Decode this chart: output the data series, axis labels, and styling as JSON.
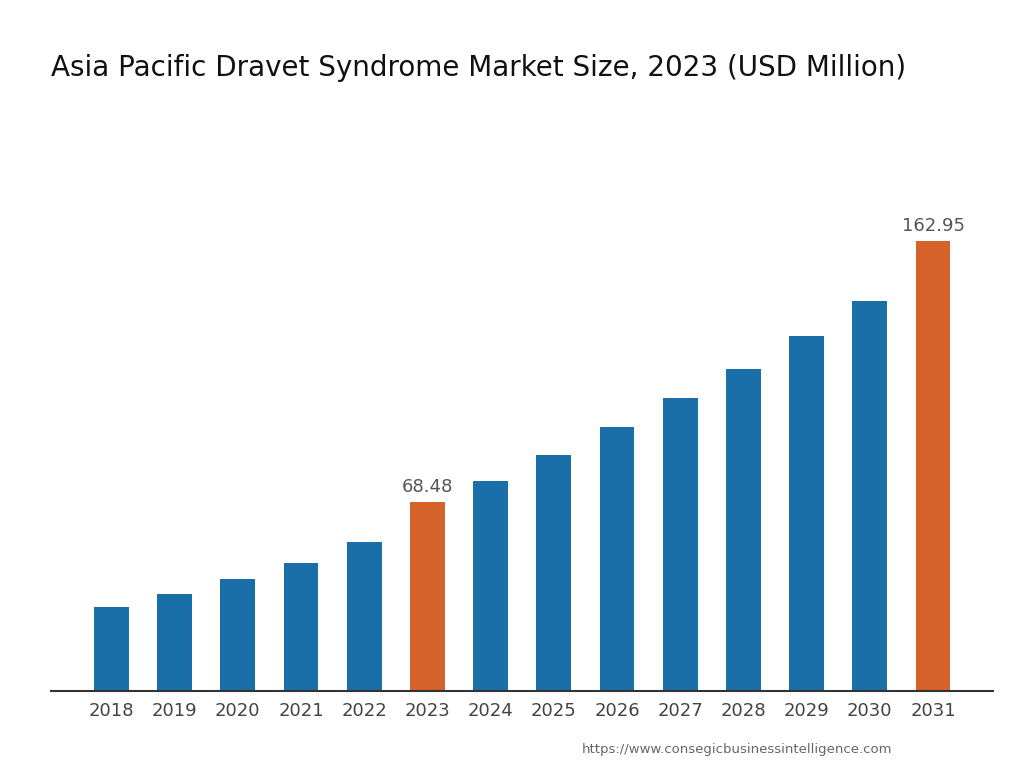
{
  "title": "Asia Pacific Dravet Syndrome Market Size, 2023 (USD Million)",
  "categories": [
    "2018",
    "2019",
    "2020",
    "2021",
    "2022",
    "2023",
    "2024",
    "2025",
    "2026",
    "2027",
    "2028",
    "2029",
    "2030",
    "2031"
  ],
  "values": [
    30.5,
    35.0,
    40.5,
    46.5,
    54.0,
    68.48,
    76.0,
    85.5,
    95.5,
    106.0,
    116.5,
    128.5,
    141.0,
    162.95
  ],
  "bar_colors": [
    "#1a6fa8",
    "#1a6fa8",
    "#1a6fa8",
    "#1a6fa8",
    "#1a6fa8",
    "#d4622a",
    "#1a6fa8",
    "#1a6fa8",
    "#1a6fa8",
    "#1a6fa8",
    "#1a6fa8",
    "#1a6fa8",
    "#1a6fa8",
    "#d4622a"
  ],
  "label_2023": "68.48",
  "label_2031": "162.95",
  "label_2023_idx": 5,
  "label_2031_idx": 13,
  "footer": "https://www.consegicbusinessintelligence.com",
  "ylim": [
    0,
    200
  ],
  "background_color": "#ffffff",
  "title_fontsize": 20,
  "tick_fontsize": 13,
  "bar_width": 0.55,
  "label_color": "#555555"
}
